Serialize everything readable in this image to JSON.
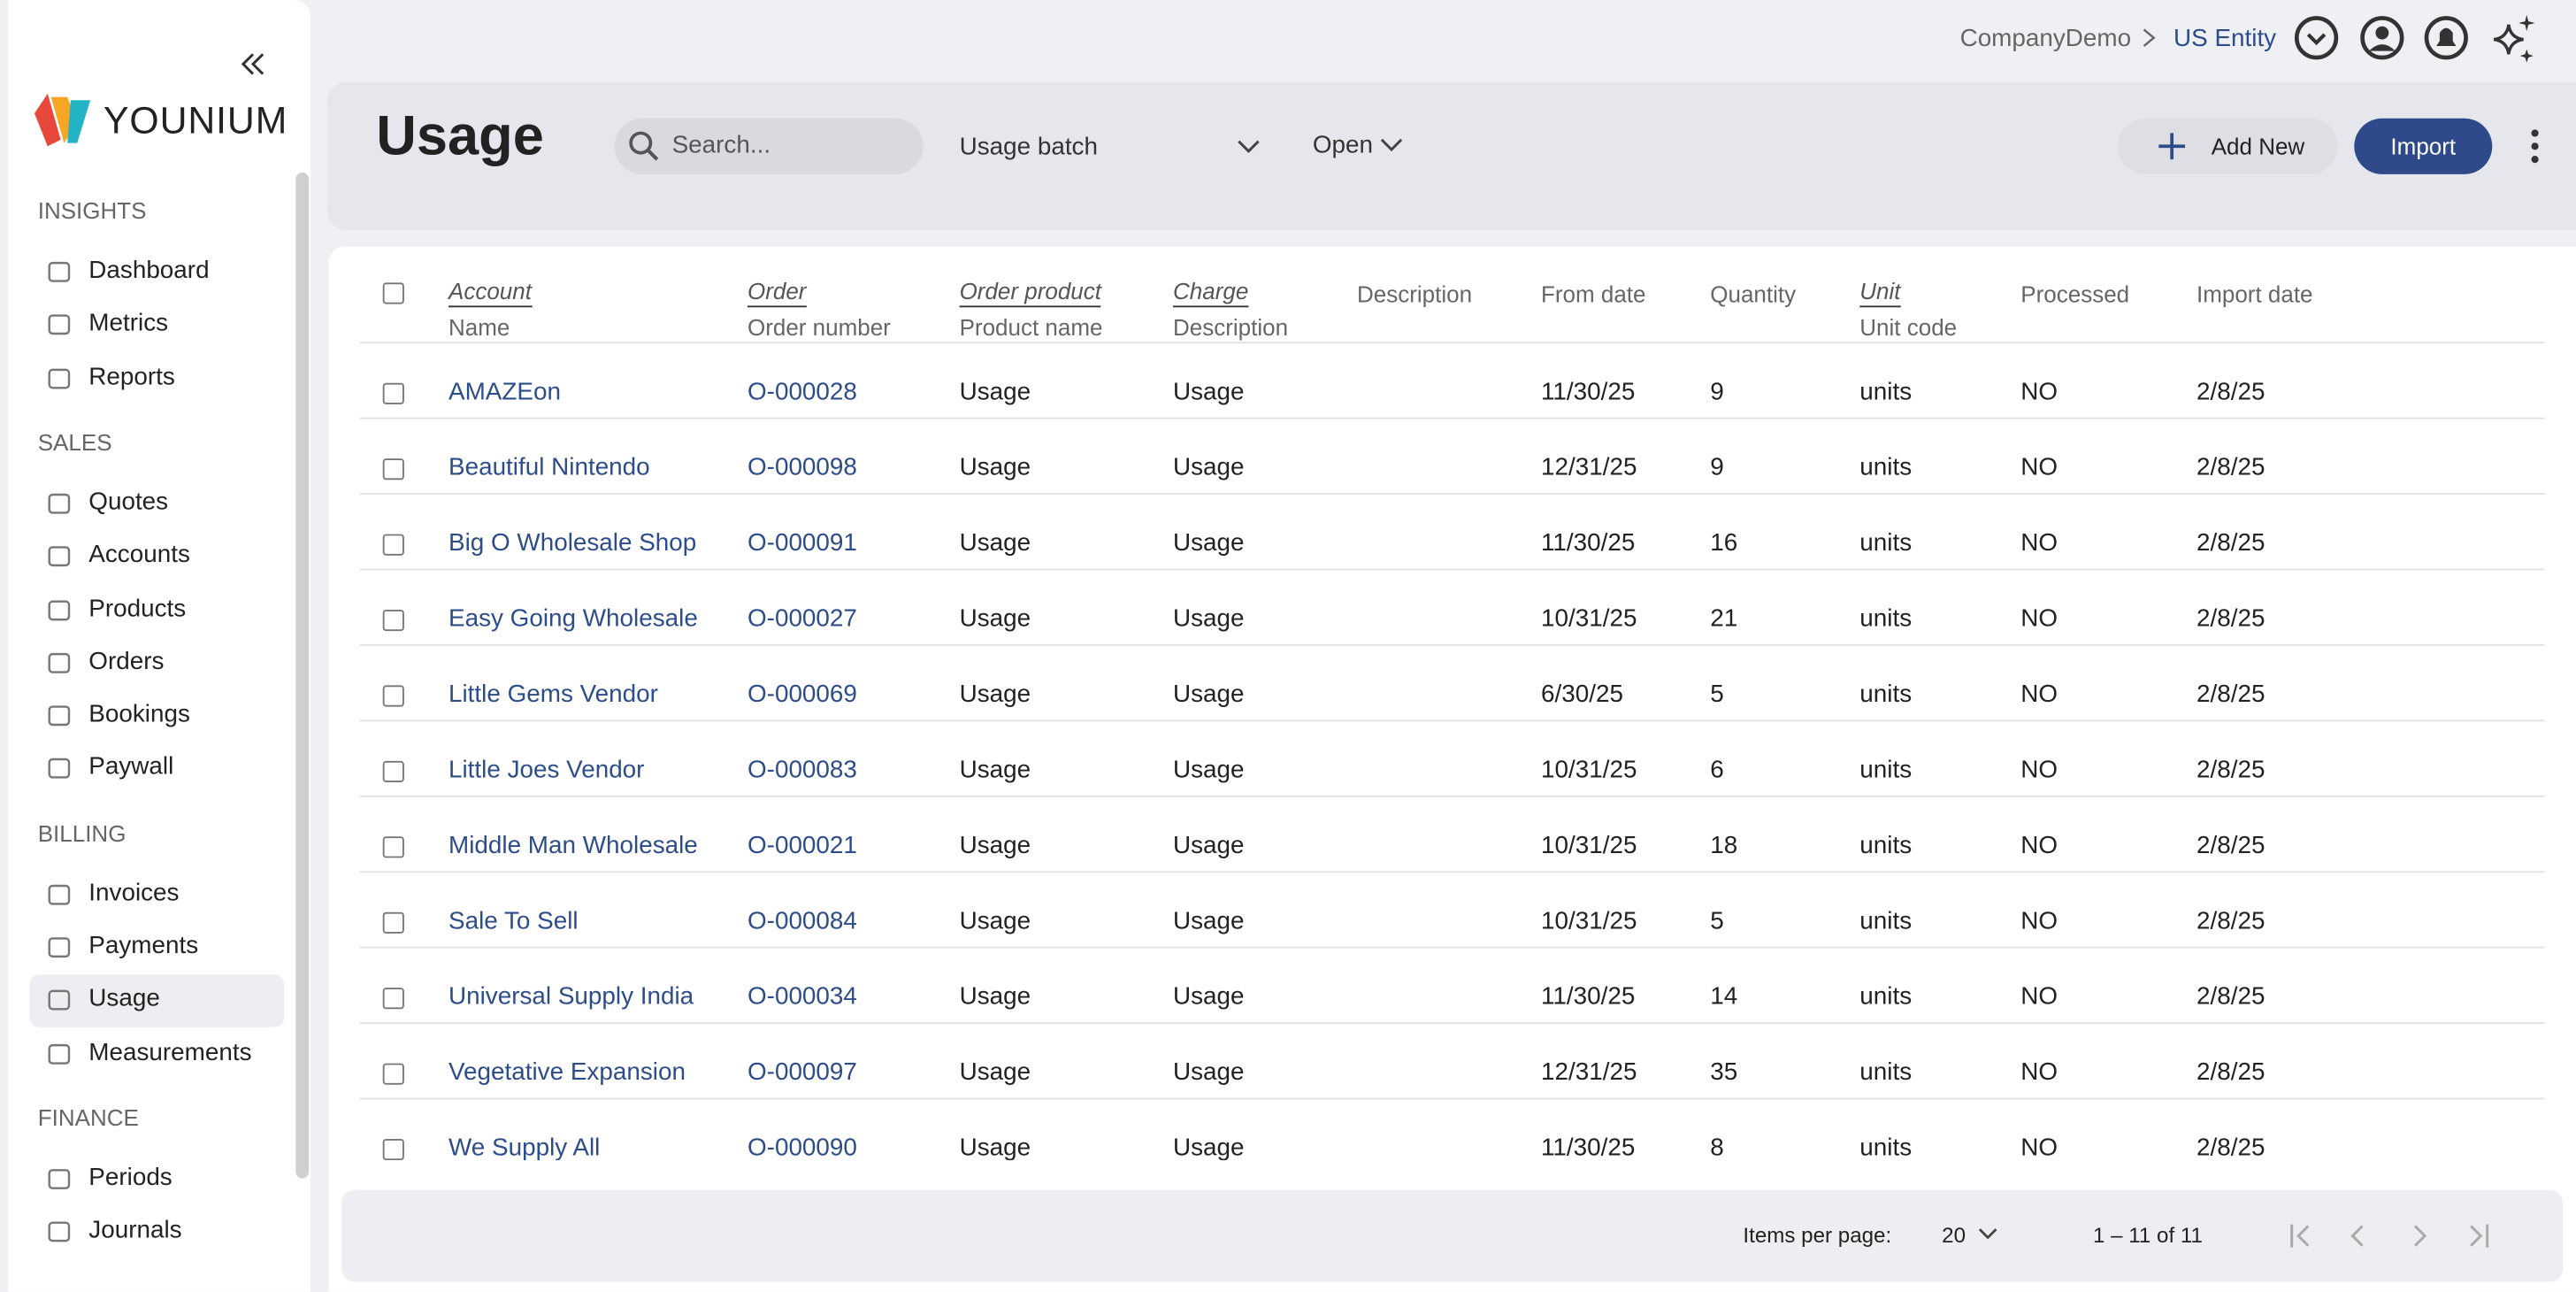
{
  "header": {
    "breadcrumb": [
      "CompanyDemo",
      "US Entity"
    ]
  },
  "sidebar": {
    "brand": "YOUNIUM",
    "sections": [
      {
        "title": "INSIGHTS",
        "items": [
          "Dashboard",
          "Metrics",
          "Reports"
        ]
      },
      {
        "title": "SALES",
        "items": [
          "Quotes",
          "Accounts",
          "Products",
          "Orders",
          "Bookings",
          "Paywall"
        ]
      },
      {
        "title": "BILLING",
        "items": [
          "Invoices",
          "Payments",
          "Usage",
          "Measurements"
        ]
      },
      {
        "title": "FINANCE",
        "items": [
          "Periods",
          "Journals"
        ]
      }
    ]
  },
  "toolbar": {
    "title": "Usage",
    "search_placeholder": "Search...",
    "filter": "Usage batch",
    "status": "Open",
    "add_button": "Add New",
    "import_button": "Import"
  },
  "table": {
    "columns": [
      {
        "top": "Account",
        "sub": "Name"
      },
      {
        "top": "Order",
        "sub": "Order number"
      },
      {
        "top": "Order product",
        "sub": "Product name"
      },
      {
        "top": "Charge",
        "sub": "Description"
      },
      {
        "sub": "Description"
      },
      {
        "sub": "From date"
      },
      {
        "sub": "Quantity"
      },
      {
        "top": "Unit",
        "sub": "Unit code"
      },
      {
        "sub": "Processed"
      },
      {
        "sub": "Import date"
      }
    ],
    "rows": [
      [
        "AMAZEon",
        "O-000028",
        "Usage",
        "Usage",
        null,
        "11/30/25",
        9,
        "units",
        "NO",
        "2/8/25"
      ],
      [
        "Beautiful Nintendo",
        "O-000098",
        "Usage",
        "Usage",
        null,
        "12/31/25",
        9,
        "units",
        "NO",
        "2/8/25"
      ],
      [
        "Big O Wholesale Shop",
        "O-000091",
        "Usage",
        "Usage",
        null,
        "11/30/25",
        16,
        "units",
        "NO",
        "2/8/25"
      ],
      [
        "Easy Going Wholesale",
        "O-000027",
        "Usage",
        "Usage",
        null,
        "10/31/25",
        21,
        "units",
        "NO",
        "2/8/25"
      ],
      [
        "Little Gems Vendor",
        "O-000069",
        "Usage",
        "Usage",
        null,
        "6/30/25",
        5,
        "units",
        "NO",
        "2/8/25"
      ],
      [
        "Little Joes Vendor",
        "O-000083",
        "Usage",
        "Usage",
        null,
        "10/31/25",
        6,
        "units",
        "NO",
        "2/8/25"
      ],
      [
        "Middle Man Wholesale",
        "O-000021",
        "Usage",
        "Usage",
        null,
        "10/31/25",
        18,
        "units",
        "NO",
        "2/8/25"
      ],
      [
        "Sale To Sell",
        "O-000084",
        "Usage",
        "Usage",
        null,
        "10/31/25",
        5,
        "units",
        "NO",
        "2/8/25"
      ],
      [
        "Universal Supply India",
        "O-000034",
        "Usage",
        "Usage",
        null,
        "11/30/25",
        14,
        "units",
        "NO",
        "2/8/25"
      ],
      [
        "Vegetative Expansion",
        "O-000097",
        "Usage",
        "Usage",
        null,
        "12/31/25",
        35,
        "units",
        "NO",
        "2/8/25"
      ],
      [
        "We Supply All",
        "O-000090",
        "Usage",
        "Usage",
        null,
        "11/30/25",
        8,
        "units",
        "NO",
        "2/8/25"
      ]
    ]
  },
  "pager": {
    "items_per_page_label": "Items per page:",
    "items_per_page": 20,
    "range": "1 – 11 of 11"
  }
}
